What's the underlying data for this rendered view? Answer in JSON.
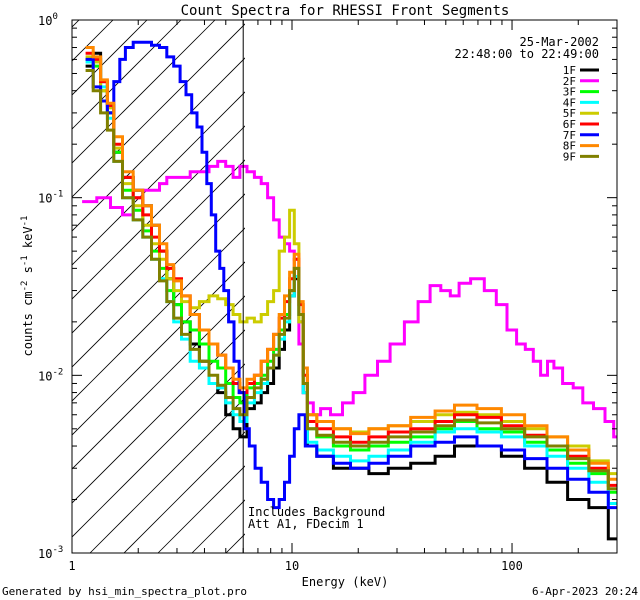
{
  "chart_data": {
    "type": "line",
    "title": "Count Spectra for RHESSI Front Segments",
    "xlabel": "Energy (keV)",
    "ylabel_main": "counts cm",
    "ylabel_exp1": "-2",
    "ylabel_mid": " s",
    "ylabel_exp2": "-1",
    "ylabel_end": " keV",
    "ylabel_exp3": "-1",
    "xscale": "log",
    "yscale": "log",
    "xlim": [
      1.0,
      300
    ],
    "ylim": [
      0.001,
      1.0
    ],
    "x_ticks": [
      {
        "value": 1,
        "label": "1"
      },
      {
        "value": 10,
        "label": "10"
      },
      {
        "value": 100,
        "label": "100"
      }
    ],
    "y_ticks": [
      {
        "value": 0.001,
        "base": "10",
        "exp": "-3"
      },
      {
        "value": 0.01,
        "base": "10",
        "exp": "-2"
      },
      {
        "value": 0.1,
        "base": "10",
        "exp": "-1"
      },
      {
        "value": 1.0,
        "base": "10",
        "exp": "0"
      }
    ],
    "date": "25-Mar-2002",
    "time_range": "22:48:00 to 22:49:00",
    "attenuator_boundary_keV": 6.0,
    "annotation_line1": "Includes Background",
    "annotation_line2": "Att A1, FDecim 1",
    "footer_left": "Generated by hsi_min_spectra_plot.pro",
    "footer_right": "6-Apr-2023 20:24",
    "series": [
      {
        "name": "1F",
        "color": "#000000",
        "x": [
          1.2,
          1.3,
          1.4,
          1.5,
          1.6,
          1.8,
          2.0,
          2.2,
          2.4,
          2.6,
          2.8,
          3.0,
          3.3,
          3.6,
          4.0,
          4.4,
          4.8,
          5.2,
          5.6,
          6.0,
          6.5,
          7.0,
          7.5,
          8.0,
          8.5,
          9.0,
          9.5,
          10.0,
          10.5,
          11.0,
          11.5,
          12,
          14,
          17,
          20,
          25,
          30,
          40,
          50,
          60,
          80,
          100,
          130,
          160,
          200,
          250,
          300
        ],
        "values": [
          0.55,
          0.65,
          0.45,
          0.3,
          0.18,
          0.13,
          0.11,
          0.09,
          0.07,
          0.05,
          0.035,
          0.025,
          0.02,
          0.015,
          0.012,
          0.009,
          0.008,
          0.006,
          0.005,
          0.0045,
          0.0065,
          0.007,
          0.008,
          0.009,
          0.011,
          0.014,
          0.018,
          0.028,
          0.035,
          0.02,
          0.008,
          0.004,
          0.0035,
          0.003,
          0.003,
          0.0028,
          0.003,
          0.0032,
          0.0035,
          0.004,
          0.004,
          0.0035,
          0.003,
          0.0025,
          0.002,
          0.0018,
          0.0012
        ]
      },
      {
        "name": "2F",
        "color": "#ff00ff",
        "x": [
          1.2,
          1.4,
          1.6,
          1.8,
          2.0,
          2.2,
          2.4,
          2.6,
          2.8,
          3.0,
          3.3,
          3.6,
          4.0,
          4.4,
          4.8,
          5.2,
          5.6,
          6.0,
          6.5,
          7.0,
          7.5,
          8.0,
          8.5,
          9.0,
          9.5,
          10.0,
          10.5,
          11.0,
          11.5,
          12,
          13,
          14,
          16,
          18,
          20,
          23,
          26,
          30,
          35,
          40,
          45,
          50,
          55,
          60,
          70,
          80,
          90,
          100,
          110,
          120,
          130,
          140,
          150,
          160,
          180,
          200,
          220,
          250,
          280,
          300
        ],
        "values": [
          0.095,
          0.1,
          0.088,
          0.08,
          0.1,
          0.11,
          0.11,
          0.12,
          0.13,
          0.13,
          0.13,
          0.14,
          0.14,
          0.15,
          0.16,
          0.15,
          0.13,
          0.15,
          0.14,
          0.13,
          0.12,
          0.1,
          0.075,
          0.06,
          0.055,
          0.05,
          0.045,
          0.015,
          0.008,
          0.007,
          0.006,
          0.0065,
          0.006,
          0.007,
          0.008,
          0.01,
          0.012,
          0.015,
          0.02,
          0.026,
          0.032,
          0.03,
          0.028,
          0.033,
          0.035,
          0.03,
          0.025,
          0.018,
          0.015,
          0.014,
          0.012,
          0.01,
          0.012,
          0.011,
          0.009,
          0.0085,
          0.007,
          0.0065,
          0.0055,
          0.0045
        ]
      },
      {
        "name": "3F",
        "color": "#00ff00",
        "x": [
          1.2,
          1.3,
          1.4,
          1.5,
          1.6,
          1.8,
          2.0,
          2.2,
          2.4,
          2.6,
          2.8,
          3.0,
          3.3,
          3.6,
          4.0,
          4.4,
          4.8,
          5.2,
          5.6,
          6.0,
          6.5,
          7.0,
          7.5,
          8.0,
          8.5,
          9.0,
          9.5,
          10.0,
          10.5,
          11.0,
          11.5,
          12,
          14,
          17,
          20,
          25,
          30,
          40,
          50,
          60,
          80,
          100,
          130,
          160,
          200,
          250,
          300
        ],
        "values": [
          0.6,
          0.55,
          0.4,
          0.3,
          0.18,
          0.11,
          0.085,
          0.065,
          0.05,
          0.04,
          0.03,
          0.025,
          0.02,
          0.018,
          0.015,
          0.012,
          0.011,
          0.009,
          0.0075,
          0.007,
          0.0085,
          0.009,
          0.01,
          0.012,
          0.014,
          0.018,
          0.022,
          0.03,
          0.04,
          0.022,
          0.009,
          0.005,
          0.0045,
          0.004,
          0.0038,
          0.004,
          0.0042,
          0.0045,
          0.005,
          0.0055,
          0.005,
          0.0048,
          0.0042,
          0.0038,
          0.0032,
          0.0028,
          0.0022
        ]
      },
      {
        "name": "4F",
        "color": "#00ffff",
        "x": [
          1.2,
          1.3,
          1.4,
          1.5,
          1.6,
          1.8,
          2.0,
          2.2,
          2.4,
          2.6,
          2.8,
          3.0,
          3.3,
          3.6,
          4.0,
          4.4,
          4.8,
          5.2,
          5.6,
          6.0,
          6.5,
          7.0,
          7.5,
          8.0,
          8.5,
          9.0,
          9.5,
          10.0,
          10.5,
          11.0,
          11.5,
          12,
          14,
          17,
          20,
          25,
          30,
          40,
          50,
          60,
          80,
          100,
          130,
          160,
          200,
          250,
          300
        ],
        "values": [
          0.58,
          0.6,
          0.42,
          0.28,
          0.16,
          0.1,
          0.075,
          0.06,
          0.045,
          0.035,
          0.026,
          0.02,
          0.016,
          0.012,
          0.011,
          0.009,
          0.0085,
          0.007,
          0.006,
          0.0055,
          0.007,
          0.008,
          0.009,
          0.011,
          0.013,
          0.016,
          0.02,
          0.028,
          0.036,
          0.02,
          0.008,
          0.0042,
          0.0038,
          0.0035,
          0.0033,
          0.0035,
          0.0038,
          0.0042,
          0.0048,
          0.005,
          0.0048,
          0.0045,
          0.004,
          0.0035,
          0.003,
          0.0025,
          0.0019
        ]
      },
      {
        "name": "5F",
        "color": "#cccc00",
        "x": [
          1.2,
          1.3,
          1.4,
          1.5,
          1.6,
          1.8,
          2.0,
          2.2,
          2.4,
          2.6,
          2.8,
          3.0,
          3.3,
          3.6,
          4.0,
          4.4,
          4.8,
          5.2,
          5.6,
          6.0,
          6.5,
          7.0,
          7.5,
          8.0,
          8.5,
          9.0,
          9.5,
          10.0,
          10.5,
          11.0,
          11.5,
          12,
          14,
          17,
          20,
          25,
          30,
          40,
          50,
          60,
          80,
          100,
          130,
          160,
          200,
          250,
          300
        ],
        "values": [
          0.62,
          0.58,
          0.4,
          0.32,
          0.19,
          0.12,
          0.09,
          0.07,
          0.055,
          0.045,
          0.035,
          0.03,
          0.026,
          0.024,
          0.026,
          0.028,
          0.027,
          0.025,
          0.022,
          0.02,
          0.021,
          0.02,
          0.022,
          0.026,
          0.03,
          0.05,
          0.06,
          0.085,
          0.055,
          0.02,
          0.009,
          0.006,
          0.0055,
          0.005,
          0.0048,
          0.005,
          0.0052,
          0.0055,
          0.006,
          0.0062,
          0.006,
          0.0055,
          0.005,
          0.0045,
          0.004,
          0.0033,
          0.0028
        ]
      },
      {
        "name": "6F",
        "color": "#ff0000",
        "x": [
          1.2,
          1.3,
          1.4,
          1.5,
          1.6,
          1.8,
          2.0,
          2.2,
          2.4,
          2.6,
          2.8,
          3.0,
          3.3,
          3.6,
          4.0,
          4.4,
          4.8,
          5.2,
          5.6,
          6.0,
          6.5,
          7.0,
          7.5,
          8.0,
          8.5,
          9.0,
          9.5,
          10.0,
          10.5,
          11.0,
          11.5,
          12,
          14,
          17,
          20,
          25,
          30,
          40,
          50,
          60,
          80,
          100,
          130,
          160,
          200,
          250,
          300
        ],
        "values": [
          0.65,
          0.6,
          0.45,
          0.33,
          0.2,
          0.13,
          0.1,
          0.08,
          0.06,
          0.05,
          0.04,
          0.035,
          0.028,
          0.022,
          0.018,
          0.015,
          0.013,
          0.011,
          0.009,
          0.008,
          0.009,
          0.01,
          0.012,
          0.014,
          0.017,
          0.021,
          0.026,
          0.035,
          0.045,
          0.025,
          0.01,
          0.0055,
          0.005,
          0.0045,
          0.0042,
          0.0045,
          0.0048,
          0.005,
          0.0055,
          0.006,
          0.0058,
          0.0052,
          0.0046,
          0.004,
          0.0035,
          0.003,
          0.0024
        ]
      },
      {
        "name": "7F",
        "color": "#0000ff",
        "x": [
          1.2,
          1.3,
          1.4,
          1.5,
          1.6,
          1.7,
          1.8,
          2.0,
          2.2,
          2.4,
          2.6,
          2.8,
          3.0,
          3.2,
          3.4,
          3.6,
          3.8,
          4.0,
          4.2,
          4.4,
          4.6,
          4.8,
          5.0,
          5.3,
          5.6,
          5.9,
          6.2,
          6.6,
          7.0,
          7.5,
          8.0,
          8.5,
          9.0,
          9.5,
          10.0,
          10.5,
          11.0,
          12,
          14,
          17,
          20,
          25,
          30,
          40,
          50,
          60,
          80,
          100,
          130,
          160,
          200,
          250,
          300
        ],
        "values": [
          0.6,
          0.42,
          0.35,
          0.3,
          0.45,
          0.6,
          0.7,
          0.75,
          0.75,
          0.72,
          0.7,
          0.62,
          0.55,
          0.45,
          0.38,
          0.3,
          0.25,
          0.18,
          0.12,
          0.08,
          0.05,
          0.04,
          0.03,
          0.02,
          0.012,
          0.008,
          0.005,
          0.004,
          0.003,
          0.0025,
          0.002,
          0.0018,
          0.002,
          0.0025,
          0.0035,
          0.005,
          0.006,
          0.004,
          0.0035,
          0.0032,
          0.003,
          0.0032,
          0.0035,
          0.004,
          0.0042,
          0.0045,
          0.004,
          0.0038,
          0.0034,
          0.003,
          0.0026,
          0.0022,
          0.0018
        ]
      },
      {
        "name": "8F",
        "color": "#ff8800",
        "x": [
          1.2,
          1.3,
          1.4,
          1.5,
          1.6,
          1.8,
          2.0,
          2.2,
          2.4,
          2.6,
          2.8,
          3.0,
          3.3,
          3.6,
          4.0,
          4.4,
          4.8,
          5.2,
          5.6,
          6.0,
          6.5,
          7.0,
          7.5,
          8.0,
          8.5,
          9.0,
          9.5,
          10.0,
          10.5,
          11.0,
          11.5,
          12,
          14,
          17,
          20,
          25,
          30,
          40,
          50,
          60,
          80,
          100,
          130,
          160,
          200,
          250,
          300
        ],
        "values": [
          0.7,
          0.62,
          0.46,
          0.34,
          0.22,
          0.14,
          0.11,
          0.09,
          0.07,
          0.055,
          0.042,
          0.034,
          0.028,
          0.022,
          0.018,
          0.015,
          0.013,
          0.011,
          0.0095,
          0.0085,
          0.0095,
          0.01,
          0.012,
          0.014,
          0.017,
          0.022,
          0.028,
          0.038,
          0.048,
          0.026,
          0.011,
          0.006,
          0.0055,
          0.005,
          0.0047,
          0.005,
          0.0052,
          0.0058,
          0.0063,
          0.0068,
          0.0065,
          0.006,
          0.0052,
          0.0045,
          0.0038,
          0.0032,
          0.0026
        ]
      },
      {
        "name": "9F",
        "color": "#808000",
        "x": [
          1.2,
          1.3,
          1.4,
          1.5,
          1.6,
          1.8,
          2.0,
          2.2,
          2.4,
          2.6,
          2.8,
          3.0,
          3.3,
          3.6,
          4.0,
          4.4,
          4.8,
          5.2,
          5.6,
          6.0,
          6.5,
          7.0,
          7.5,
          8.0,
          8.5,
          9.0,
          9.5,
          10.0,
          10.5,
          11.0,
          11.5,
          12,
          14,
          17,
          20,
          25,
          30,
          40,
          50,
          60,
          80,
          100,
          130,
          160,
          200,
          250,
          300
        ],
        "values": [
          0.52,
          0.4,
          0.3,
          0.24,
          0.16,
          0.1,
          0.075,
          0.06,
          0.045,
          0.034,
          0.026,
          0.021,
          0.017,
          0.014,
          0.012,
          0.01,
          0.0088,
          0.0075,
          0.0065,
          0.006,
          0.0075,
          0.0085,
          0.0095,
          0.011,
          0.013,
          0.017,
          0.021,
          0.03,
          0.04,
          0.022,
          0.009,
          0.005,
          0.0046,
          0.0042,
          0.004,
          0.0042,
          0.0045,
          0.0048,
          0.0052,
          0.0056,
          0.0054,
          0.005,
          0.0045,
          0.004,
          0.0034,
          0.0029,
          0.0023
        ]
      }
    ]
  }
}
